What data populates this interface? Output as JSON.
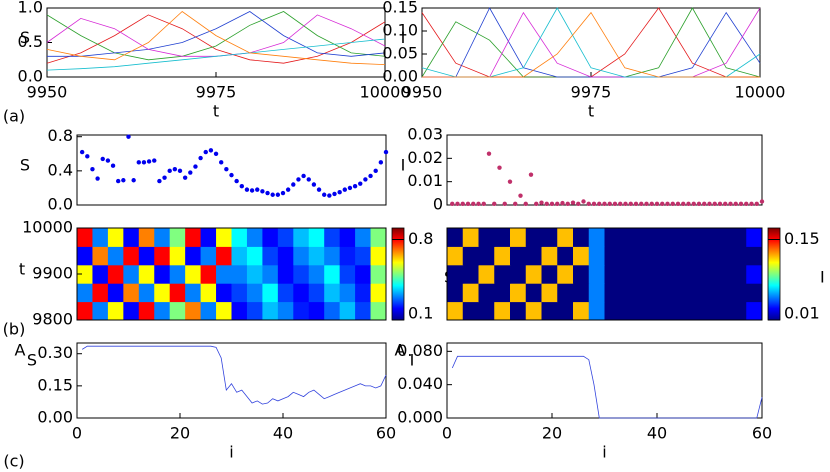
{
  "chart_data": [
    {
      "type": "line",
      "ylabel": "S",
      "xlabel": "t",
      "panel_label": "(a)",
      "xlim": [
        9950,
        10000
      ],
      "ylim": [
        0,
        1
      ],
      "xticks": [
        9950,
        9975,
        10000
      ],
      "yticks": [
        {
          "value": 0,
          "label": "0.0"
        },
        {
          "value": 0.5,
          "label": "0.5"
        },
        {
          "value": 1,
          "label": "1.0"
        }
      ],
      "x": [
        9950,
        9955,
        9960,
        9965,
        9970,
        9975,
        9980,
        9985,
        9990,
        9995,
        10000
      ],
      "series": [
        {
          "color": "#e41a1c",
          "values": [
            0.2,
            0.35,
            0.6,
            0.9,
            0.7,
            0.4,
            0.25,
            0.2,
            0.3,
            0.5,
            0.8
          ]
        },
        {
          "color": "#2ca02c",
          "values": [
            0.9,
            0.6,
            0.35,
            0.25,
            0.3,
            0.45,
            0.75,
            0.95,
            0.6,
            0.35,
            0.3
          ]
        },
        {
          "color": "#1f3fd0",
          "values": [
            0.3,
            0.3,
            0.35,
            0.4,
            0.5,
            0.7,
            0.95,
            0.6,
            0.35,
            0.3,
            0.35
          ]
        },
        {
          "color": "#d62ad6",
          "values": [
            0.5,
            0.85,
            0.7,
            0.4,
            0.3,
            0.3,
            0.35,
            0.5,
            0.9,
            0.7,
            0.45
          ]
        },
        {
          "color": "#17becf",
          "values": [
            0.1,
            0.12,
            0.15,
            0.2,
            0.25,
            0.3,
            0.35,
            0.4,
            0.45,
            0.5,
            0.55
          ]
        },
        {
          "color": "#ff7f0e",
          "values": [
            0.4,
            0.3,
            0.25,
            0.5,
            0.95,
            0.6,
            0.35,
            0.3,
            0.25,
            0.2,
            0.18
          ]
        }
      ]
    },
    {
      "type": "line",
      "ylabel": "I",
      "xlabel": "t",
      "xlim": [
        9950,
        10000
      ],
      "ylim": [
        0,
        0.15
      ],
      "xticks": [
        9950,
        9975,
        10000
      ],
      "yticks": [
        {
          "value": 0,
          "label": "0.00"
        },
        {
          "value": 0.05,
          "label": "0.05"
        },
        {
          "value": 0.1,
          "label": "0.10"
        },
        {
          "value": 0.15,
          "label": "0.15"
        }
      ],
      "x": [
        9950,
        9955,
        9960,
        9965,
        9970,
        9975,
        9980,
        9985,
        9990,
        9995,
        10000
      ],
      "series": [
        {
          "color": "#e41a1c",
          "values": [
            0.14,
            0.03,
            0,
            0,
            0,
            0,
            0.05,
            0.15,
            0.03,
            0,
            0
          ]
        },
        {
          "color": "#2ca02c",
          "values": [
            0,
            0.12,
            0.08,
            0,
            0,
            0,
            0,
            0.02,
            0.15,
            0.02,
            0
          ]
        },
        {
          "color": "#1f3fd0",
          "values": [
            0,
            0,
            0.15,
            0.02,
            0,
            0,
            0,
            0,
            0.02,
            0.14,
            0.03
          ]
        },
        {
          "color": "#d62ad6",
          "values": [
            0,
            0,
            0,
            0.14,
            0.03,
            0,
            0,
            0,
            0,
            0.03,
            0.15
          ]
        },
        {
          "color": "#17becf",
          "values": [
            0.02,
            0,
            0,
            0.02,
            0.15,
            0.02,
            0,
            0,
            0,
            0,
            0.05
          ]
        },
        {
          "color": "#ff7f0e",
          "values": [
            0,
            0,
            0,
            0,
            0.05,
            0.14,
            0.02,
            0,
            0,
            0,
            0
          ]
        }
      ]
    },
    {
      "type": "scatter",
      "ylabel": "S",
      "xlim": [
        0,
        60
      ],
      "ylim": [
        0,
        0.82
      ],
      "color": "#0000ee",
      "yticks": [
        {
          "value": 0,
          "label": "0.0"
        },
        {
          "value": 0.4,
          "label": "0.4"
        },
        {
          "value": 0.8,
          "label": "0.8"
        }
      ],
      "x": [
        1,
        2,
        3,
        4,
        5,
        6,
        7,
        8,
        9,
        10,
        11,
        12,
        13,
        14,
        15,
        16,
        17,
        18,
        19,
        20,
        21,
        22,
        23,
        24,
        25,
        26,
        27,
        28,
        29,
        30,
        31,
        32,
        33,
        34,
        35,
        36,
        37,
        38,
        39,
        40,
        41,
        42,
        43,
        44,
        45,
        46,
        47,
        48,
        49,
        50,
        51,
        52,
        53,
        54,
        55,
        56,
        57,
        58,
        59,
        60
      ],
      "values": [
        0.62,
        0.57,
        0.42,
        0.31,
        0.54,
        0.52,
        0.46,
        0.28,
        0.29,
        0.8,
        0.29,
        0.5,
        0.5,
        0.51,
        0.52,
        0.28,
        0.32,
        0.4,
        0.42,
        0.4,
        0.32,
        0.38,
        0.45,
        0.55,
        0.62,
        0.64,
        0.6,
        0.5,
        0.42,
        0.35,
        0.28,
        0.22,
        0.18,
        0.17,
        0.18,
        0.16,
        0.14,
        0.12,
        0.12,
        0.14,
        0.18,
        0.24,
        0.3,
        0.34,
        0.3,
        0.24,
        0.18,
        0.12,
        0.11,
        0.13,
        0.15,
        0.18,
        0.2,
        0.22,
        0.25,
        0.3,
        0.34,
        0.4,
        0.5,
        0.62
      ]
    },
    {
      "type": "scatter",
      "ylabel": "I",
      "xlim": [
        0,
        60
      ],
      "ylim": [
        0,
        0.03
      ],
      "color": "#c0306a",
      "yticks": [
        0,
        0.01,
        0.02,
        0.03
      ],
      "x": [
        1,
        2,
        3,
        4,
        5,
        6,
        7,
        8,
        9,
        10,
        11,
        12,
        13,
        14,
        15,
        16,
        17,
        18,
        19,
        20,
        21,
        22,
        23,
        24,
        25,
        26,
        27,
        28,
        29,
        30,
        31,
        32,
        33,
        34,
        35,
        36,
        37,
        38,
        39,
        40,
        41,
        42,
        43,
        44,
        45,
        46,
        47,
        48,
        49,
        50,
        51,
        52,
        53,
        54,
        55,
        56,
        57,
        58,
        59,
        60
      ],
      "values": [
        0.0005,
        0.0005,
        0.0005,
        0.0005,
        0.0005,
        0.0005,
        0.0005,
        0.022,
        0.0005,
        0.016,
        0.0005,
        0.01,
        0.0005,
        0.004,
        0.0005,
        0.013,
        0.0005,
        0.001,
        0.0005,
        0.0005,
        0.0005,
        0.0008,
        0.0005,
        0.001,
        0.0005,
        0.0015,
        0.0005,
        0.0005,
        0.0005,
        0.0005,
        0.0005,
        0.0005,
        0.0005,
        0.0005,
        0.0005,
        0.0005,
        0.0005,
        0.0005,
        0.0005,
        0.0005,
        0.0005,
        0.0005,
        0.0005,
        0.0005,
        0.0005,
        0.0005,
        0.0005,
        0.0005,
        0.0005,
        0.0005,
        0.0005,
        0.0005,
        0.0005,
        0.0005,
        0.0005,
        0.0005,
        0.0005,
        0.0005,
        0.0005,
        0.0015
      ]
    },
    {
      "type": "heatmap",
      "ylabel": "t",
      "panel_label": "(b)",
      "colorbar_label": "S",
      "ylim": [
        9800,
        10000
      ],
      "yticks": [
        9800,
        9900,
        10000
      ],
      "zlim": [
        0.1,
        0.9
      ],
      "cticks": [
        0.1,
        0.8
      ],
      "z": [
        [
          0.8,
          0.3,
          0.6,
          0.2,
          0.8,
          0.3,
          0.5,
          0.7,
          0.3,
          0.6,
          0.2,
          0.25,
          0.35,
          0.3,
          0.22,
          0.2,
          0.28,
          0.35,
          0.25,
          0.5
        ],
        [
          0.3,
          0.8,
          0.2,
          0.7,
          0.3,
          0.6,
          0.8,
          0.3,
          0.6,
          0.2,
          0.25,
          0.3,
          0.4,
          0.25,
          0.2,
          0.25,
          0.35,
          0.3,
          0.22,
          0.6
        ],
        [
          0.6,
          0.2,
          0.8,
          0.3,
          0.6,
          0.2,
          0.3,
          0.6,
          0.8,
          0.3,
          0.3,
          0.35,
          0.3,
          0.2,
          0.25,
          0.3,
          0.4,
          0.25,
          0.2,
          0.5
        ],
        [
          0.2,
          0.7,
          0.3,
          0.8,
          0.2,
          0.8,
          0.6,
          0.2,
          0.3,
          0.8,
          0.35,
          0.4,
          0.25,
          0.2,
          0.3,
          0.35,
          0.3,
          0.22,
          0.25,
          0.6
        ],
        [
          0.8,
          0.3,
          0.6,
          0.2,
          0.7,
          0.3,
          0.5,
          0.8,
          0.2,
          0.6,
          0.4,
          0.3,
          0.2,
          0.25,
          0.35,
          0.4,
          0.25,
          0.2,
          0.3,
          0.5
        ]
      ]
    },
    {
      "type": "heatmap",
      "colorbar_label": "I",
      "ylim": [
        9800,
        10000
      ],
      "zlim": [
        0.01,
        0.17
      ],
      "cticks": [
        0.01,
        0.15
      ],
      "z": [
        [
          0.12,
          0.01,
          0.01,
          0.12,
          0.01,
          0.12,
          0.01,
          0.01,
          0.12,
          0.05,
          0.01,
          0.01,
          0.01,
          0.01,
          0.01,
          0.01,
          0.01,
          0.01,
          0.01,
          0.03
        ],
        [
          0.01,
          0.12,
          0.01,
          0.01,
          0.12,
          0.01,
          0.12,
          0.01,
          0.01,
          0.05,
          0.01,
          0.01,
          0.01,
          0.01,
          0.01,
          0.01,
          0.01,
          0.01,
          0.01,
          0.01
        ],
        [
          0.01,
          0.01,
          0.12,
          0.01,
          0.01,
          0.12,
          0.01,
          0.12,
          0.01,
          0.05,
          0.01,
          0.01,
          0.01,
          0.01,
          0.01,
          0.01,
          0.01,
          0.01,
          0.01,
          0.03
        ],
        [
          0.12,
          0.01,
          0.01,
          0.12,
          0.01,
          0.01,
          0.12,
          0.01,
          0.12,
          0.05,
          0.01,
          0.01,
          0.01,
          0.01,
          0.01,
          0.01,
          0.01,
          0.01,
          0.01,
          0.01
        ],
        [
          0.01,
          0.12,
          0.01,
          0.01,
          0.12,
          0.01,
          0.01,
          0.12,
          0.01,
          0.05,
          0.01,
          0.01,
          0.01,
          0.01,
          0.01,
          0.01,
          0.01,
          0.01,
          0.01,
          0.03
        ]
      ]
    },
    {
      "type": "line",
      "ylabel": "A",
      "ylabel_subscript": "S",
      "xlabel": "i",
      "panel_label": "(c)",
      "xlim": [
        0,
        60
      ],
      "ylim": [
        0,
        0.35
      ],
      "xticks": [
        0,
        20,
        40,
        60
      ],
      "yticks": [
        {
          "value": 0,
          "label": "0.00"
        },
        {
          "value": 0.15,
          "label": "0.15"
        },
        {
          "value": 0.3,
          "label": "0.30"
        }
      ],
      "x": [
        1,
        2,
        3,
        4,
        5,
        6,
        7,
        8,
        9,
        10,
        11,
        12,
        13,
        14,
        15,
        16,
        17,
        18,
        19,
        20,
        21,
        22,
        23,
        24,
        25,
        26,
        27,
        28,
        29,
        30,
        31,
        32,
        33,
        34,
        35,
        36,
        37,
        38,
        39,
        40,
        41,
        42,
        43,
        44,
        45,
        46,
        47,
        48,
        49,
        50,
        51,
        52,
        53,
        54,
        55,
        56,
        57,
        58,
        59,
        60
      ],
      "series": [
        {
          "color": "#3344dd",
          "values": [
            0.32,
            0.335,
            0.335,
            0.335,
            0.335,
            0.335,
            0.335,
            0.335,
            0.335,
            0.335,
            0.335,
            0.335,
            0.335,
            0.335,
            0.335,
            0.335,
            0.335,
            0.335,
            0.335,
            0.335,
            0.335,
            0.335,
            0.335,
            0.335,
            0.335,
            0.335,
            0.33,
            0.28,
            0.13,
            0.16,
            0.12,
            0.13,
            0.1,
            0.07,
            0.08,
            0.065,
            0.07,
            0.09,
            0.08,
            0.09,
            0.1,
            0.12,
            0.11,
            0.1,
            0.12,
            0.13,
            0.11,
            0.09,
            0.1,
            0.11,
            0.12,
            0.13,
            0.14,
            0.15,
            0.16,
            0.15,
            0.15,
            0.14,
            0.15,
            0.2
          ]
        }
      ]
    },
    {
      "type": "line",
      "ylabel": "A",
      "ylabel_subscript": "I",
      "xlabel": "i",
      "xlim": [
        0,
        60
      ],
      "ylim": [
        0,
        0.09
      ],
      "xticks": [
        0,
        20,
        40,
        60
      ],
      "yticks": [
        {
          "value": 0,
          "label": "0.000"
        },
        {
          "value": 0.04,
          "label": "0.040"
        },
        {
          "value": 0.08,
          "label": "0.080"
        }
      ],
      "x": [
        1,
        2,
        3,
        4,
        5,
        6,
        7,
        8,
        9,
        10,
        11,
        12,
        13,
        14,
        15,
        16,
        17,
        18,
        19,
        20,
        21,
        22,
        23,
        24,
        25,
        26,
        27,
        28,
        29,
        30,
        31,
        32,
        33,
        34,
        35,
        36,
        37,
        38,
        39,
        40,
        41,
        42,
        43,
        44,
        45,
        46,
        47,
        48,
        49,
        50,
        51,
        52,
        53,
        54,
        55,
        56,
        57,
        58,
        59,
        60
      ],
      "series": [
        {
          "color": "#3344dd",
          "values": [
            0.06,
            0.074,
            0.074,
            0.074,
            0.074,
            0.074,
            0.074,
            0.074,
            0.074,
            0.074,
            0.074,
            0.074,
            0.074,
            0.074,
            0.074,
            0.074,
            0.074,
            0.074,
            0.074,
            0.074,
            0.074,
            0.074,
            0.074,
            0.074,
            0.074,
            0.074,
            0.07,
            0.04,
            0,
            0,
            0,
            0,
            0,
            0,
            0,
            0,
            0,
            0,
            0,
            0,
            0,
            0,
            0,
            0,
            0,
            0,
            0,
            0,
            0,
            0,
            0,
            0,
            0,
            0,
            0,
            0,
            0,
            0,
            0,
            0.025
          ]
        }
      ]
    }
  ]
}
